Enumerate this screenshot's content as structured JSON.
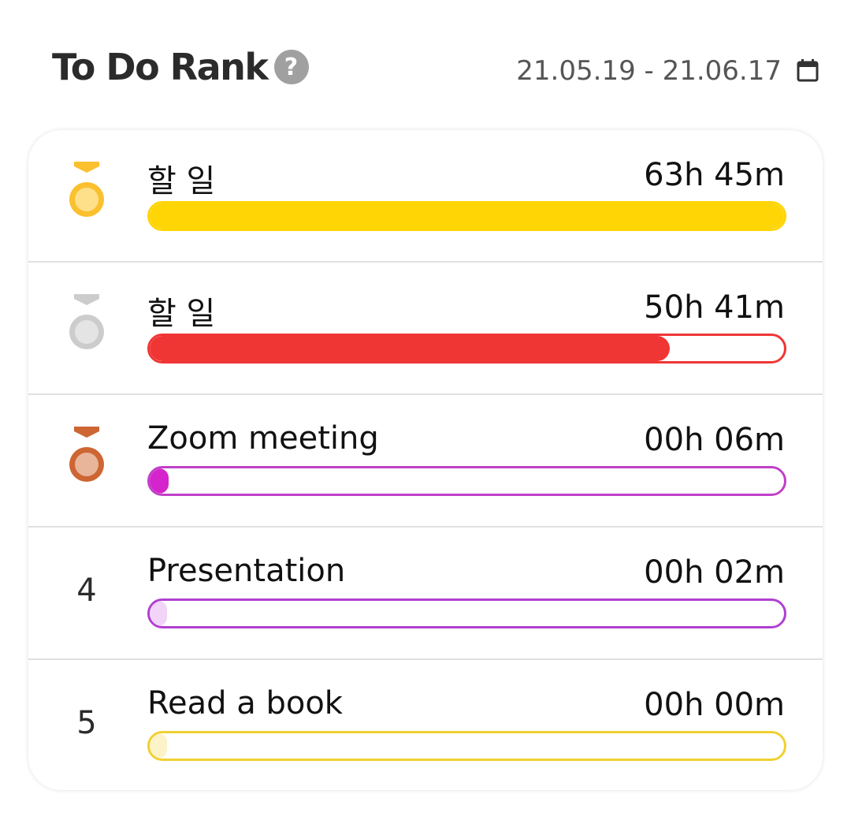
{
  "header": {
    "title": "To Do Rank",
    "help_icon": "question-circle-icon",
    "help_glyph": "?",
    "date_range": "21.05.19 - 21.06.17",
    "calendar_icon": "calendar-icon"
  },
  "items": [
    {
      "rank": 1,
      "rank_label": "1",
      "medal": "gold",
      "name": "할 일",
      "time": "63h 45m",
      "progress": 1.0,
      "color": "#FFD506",
      "fill": "#FFD506"
    },
    {
      "rank": 2,
      "rank_label": "2",
      "medal": "silver",
      "name": "할 일",
      "time": "50h 41m",
      "progress": 0.82,
      "color": "#F03535",
      "fill": "#F03535"
    },
    {
      "rank": 3,
      "rank_label": "3",
      "medal": "bronze",
      "name": "Zoom meeting",
      "time": "00h 06m",
      "progress": 0.03,
      "color": "#C040C8",
      "fill": "#D524CC"
    },
    {
      "rank": 4,
      "rank_label": "4",
      "medal": "",
      "name": "Presentation",
      "time": "00h 02m",
      "progress": 0.01,
      "color": "#B040D0",
      "fill": "#F2D4F8"
    },
    {
      "rank": 5,
      "rank_label": "5",
      "medal": "",
      "name": "Read a book",
      "time": "00h 00m",
      "progress": 0.0,
      "color": "#F0D030",
      "fill": "#FDF3C8"
    }
  ],
  "medal_colors": {
    "gold": [
      "#FBC02D",
      "#FFE08A"
    ],
    "silver": [
      "#CCCCCC",
      "#E4E4E4"
    ],
    "bronze": [
      "#CD6633",
      "#E8B49A"
    ]
  }
}
